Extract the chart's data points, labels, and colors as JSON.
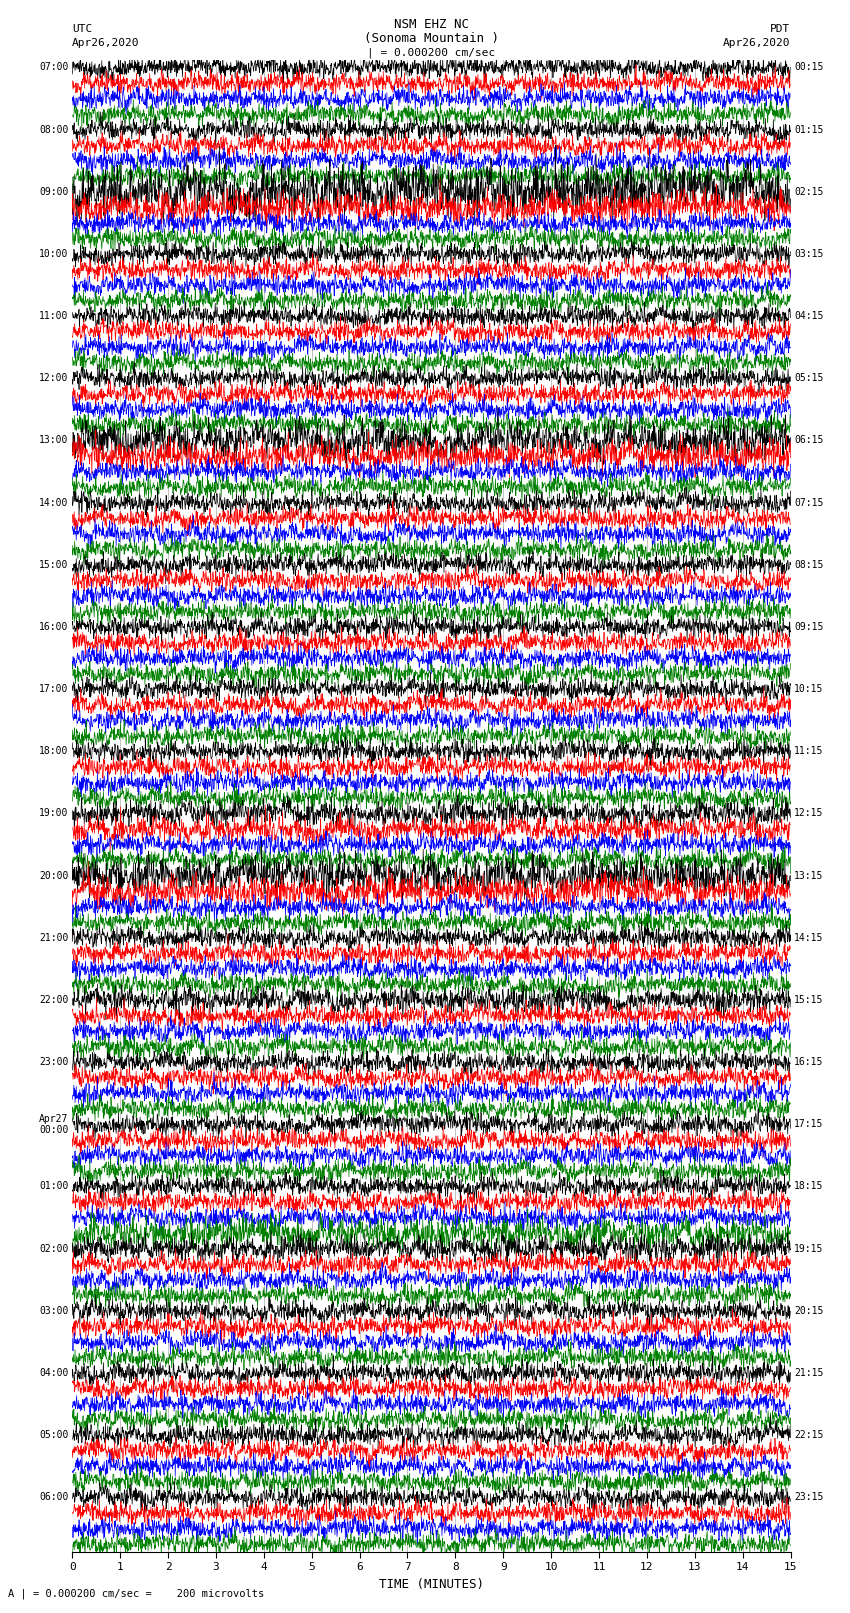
{
  "title_line1": "NSM EHZ NC",
  "title_line2": "(Sonoma Mountain )",
  "title_scale": "| = 0.000200 cm/sec",
  "label_left_top": "UTC",
  "label_left_date": "Apr26,2020",
  "label_right_top": "PDT",
  "label_right_date": "Apr26,2020",
  "label_bottom": "TIME (MINUTES)",
  "annotation": "A | = 0.000200 cm/sec =    200 microvolts",
  "xlim": [
    0,
    15
  ],
  "xticks": [
    0,
    1,
    2,
    3,
    4,
    5,
    6,
    7,
    8,
    9,
    10,
    11,
    12,
    13,
    14,
    15
  ],
  "colors": [
    "black",
    "red",
    "blue",
    "green"
  ],
  "num_rows": 96,
  "background_color": "white",
  "trace_linewidth": 0.5,
  "left_utc_times": [
    "07:00",
    "",
    "",
    "",
    "08:00",
    "",
    "",
    "",
    "09:00",
    "",
    "",
    "",
    "10:00",
    "",
    "",
    "",
    "11:00",
    "",
    "",
    "",
    "12:00",
    "",
    "",
    "",
    "13:00",
    "",
    "",
    "",
    "14:00",
    "",
    "",
    "",
    "15:00",
    "",
    "",
    "",
    "16:00",
    "",
    "",
    "",
    "17:00",
    "",
    "",
    "",
    "18:00",
    "",
    "",
    "",
    "19:00",
    "",
    "",
    "",
    "20:00",
    "",
    "",
    "",
    "21:00",
    "",
    "",
    "",
    "22:00",
    "",
    "",
    "",
    "23:00",
    "",
    "",
    "",
    "Apr27\n00:00",
    "",
    "",
    "",
    "01:00",
    "",
    "",
    "",
    "02:00",
    "",
    "",
    "",
    "03:00",
    "",
    "",
    "",
    "04:00",
    "",
    "",
    "",
    "05:00",
    "",
    "",
    "",
    "06:00",
    "",
    "",
    ""
  ],
  "right_pdt_times": [
    "00:15",
    "",
    "",
    "",
    "01:15",
    "",
    "",
    "",
    "02:15",
    "",
    "",
    "",
    "03:15",
    "",
    "",
    "",
    "04:15",
    "",
    "",
    "",
    "05:15",
    "",
    "",
    "",
    "06:15",
    "",
    "",
    "",
    "07:15",
    "",
    "",
    "",
    "08:15",
    "",
    "",
    "",
    "09:15",
    "",
    "",
    "",
    "10:15",
    "",
    "",
    "",
    "11:15",
    "",
    "",
    "",
    "12:15",
    "",
    "",
    "",
    "13:15",
    "",
    "",
    "",
    "14:15",
    "",
    "",
    "",
    "15:15",
    "",
    "",
    "",
    "16:15",
    "",
    "",
    "",
    "17:15",
    "",
    "",
    "",
    "18:15",
    "",
    "",
    "",
    "19:15",
    "",
    "",
    "",
    "20:15",
    "",
    "",
    "",
    "21:15",
    "",
    "",
    "",
    "22:15",
    "",
    "",
    "",
    "23:15",
    "",
    "",
    ""
  ]
}
